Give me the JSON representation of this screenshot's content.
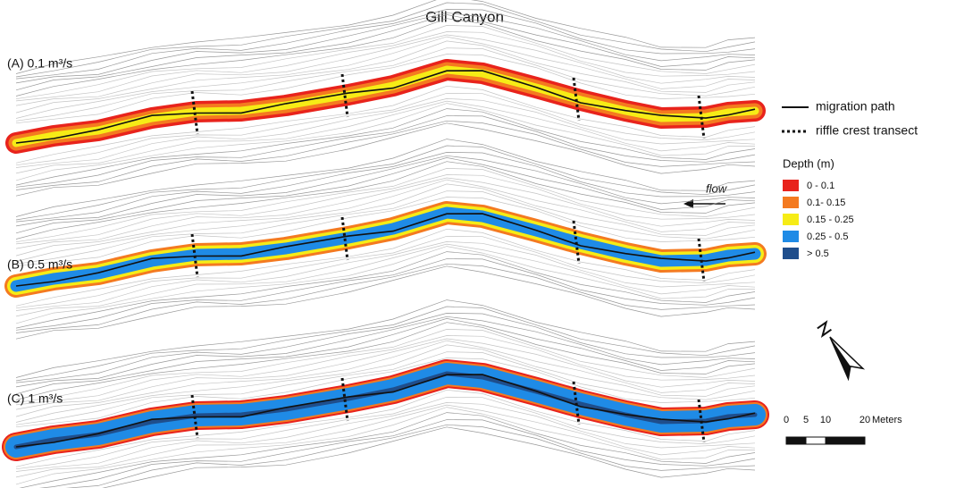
{
  "title": "Gill Canyon",
  "panels": [
    {
      "label": "(A) 0.1 m³/s"
    },
    {
      "label": "(B) 0.5 m³/s"
    },
    {
      "label": "(C) 1 m³/s"
    }
  ],
  "legend": {
    "migration_path": "migration path",
    "riffle_crest": "riffle crest transect",
    "depth_title": "Depth (m)",
    "classes": [
      {
        "label": "0 - 0.1",
        "color": "#e8231c"
      },
      {
        "label": "0.1- 0.15",
        "color": "#f47a20"
      },
      {
        "label": "0.15 - 0.25",
        "color": "#f6ec16"
      },
      {
        "label": "0.25 - 0.5",
        "color": "#1f8be6"
      },
      {
        "label": "> 0.5",
        "color": "#1f4e8c"
      }
    ]
  },
  "flow": "flow",
  "scale_bar": {
    "ticks": [
      0,
      5,
      10,
      20
    ],
    "unit": "Meters"
  }
}
